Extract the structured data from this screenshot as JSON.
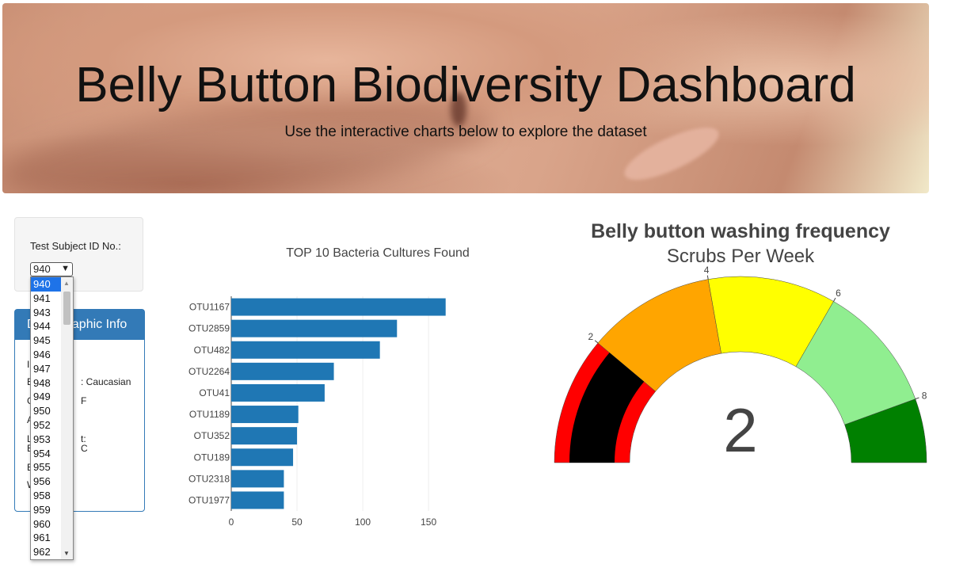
{
  "header": {
    "title": "Belly Button Biodiversity Dashboard",
    "subtitle": "Use the interactive charts below to explore the dataset"
  },
  "selector": {
    "label": "Test Subject ID No.:",
    "value": "940",
    "options": [
      "940",
      "941",
      "943",
      "944",
      "945",
      "946",
      "947",
      "948",
      "949",
      "950",
      "952",
      "953",
      "954",
      "955",
      "956",
      "958",
      "959",
      "960",
      "961",
      "962"
    ]
  },
  "demographics": {
    "title": "Demographic Info",
    "visible_rows": [
      {
        "text": "I"
      },
      {
        "text": "E",
        "tail": ": Caucasian"
      },
      {
        "text": "G",
        "tail": "F"
      },
      {
        "text": "A"
      },
      {
        "text": "L",
        "tail": "t:"
      },
      {
        "text": "B",
        "tail": "C"
      },
      {
        "text": "E"
      },
      {
        "text": "W"
      }
    ]
  },
  "chart_data": [
    {
      "type": "bar",
      "orientation": "horizontal",
      "title": "TOP 10 Bacteria Cultures Found",
      "categories": [
        "OTU1167",
        "OTU2859",
        "OTU482",
        "OTU2264",
        "OTU41",
        "OTU1189",
        "OTU352",
        "OTU189",
        "OTU2318",
        "OTU1977"
      ],
      "values": [
        163,
        126,
        113,
        78,
        71,
        51,
        50,
        47,
        40,
        40
      ],
      "xticks": [
        0,
        50,
        100,
        150
      ],
      "xlim": [
        0,
        171
      ],
      "color": "#1f77b4",
      "grid": true
    },
    {
      "type": "gauge",
      "title": "Belly button washing frequency",
      "subtitle": "Scrubs Per Week",
      "value": 2,
      "range": [
        0,
        9
      ],
      "ticks": [
        2,
        4,
        6,
        8
      ],
      "steps": [
        {
          "range": [
            0,
            2
          ],
          "color": "#ff0000"
        },
        {
          "range": [
            2,
            4
          ],
          "color": "#ffa500"
        },
        {
          "range": [
            4,
            6
          ],
          "color": "#ffff00"
        },
        {
          "range": [
            6,
            8
          ],
          "color": "#90ee90"
        },
        {
          "range": [
            8,
            9
          ],
          "color": "#008000"
        }
      ],
      "bar_color": "#000000"
    }
  ]
}
